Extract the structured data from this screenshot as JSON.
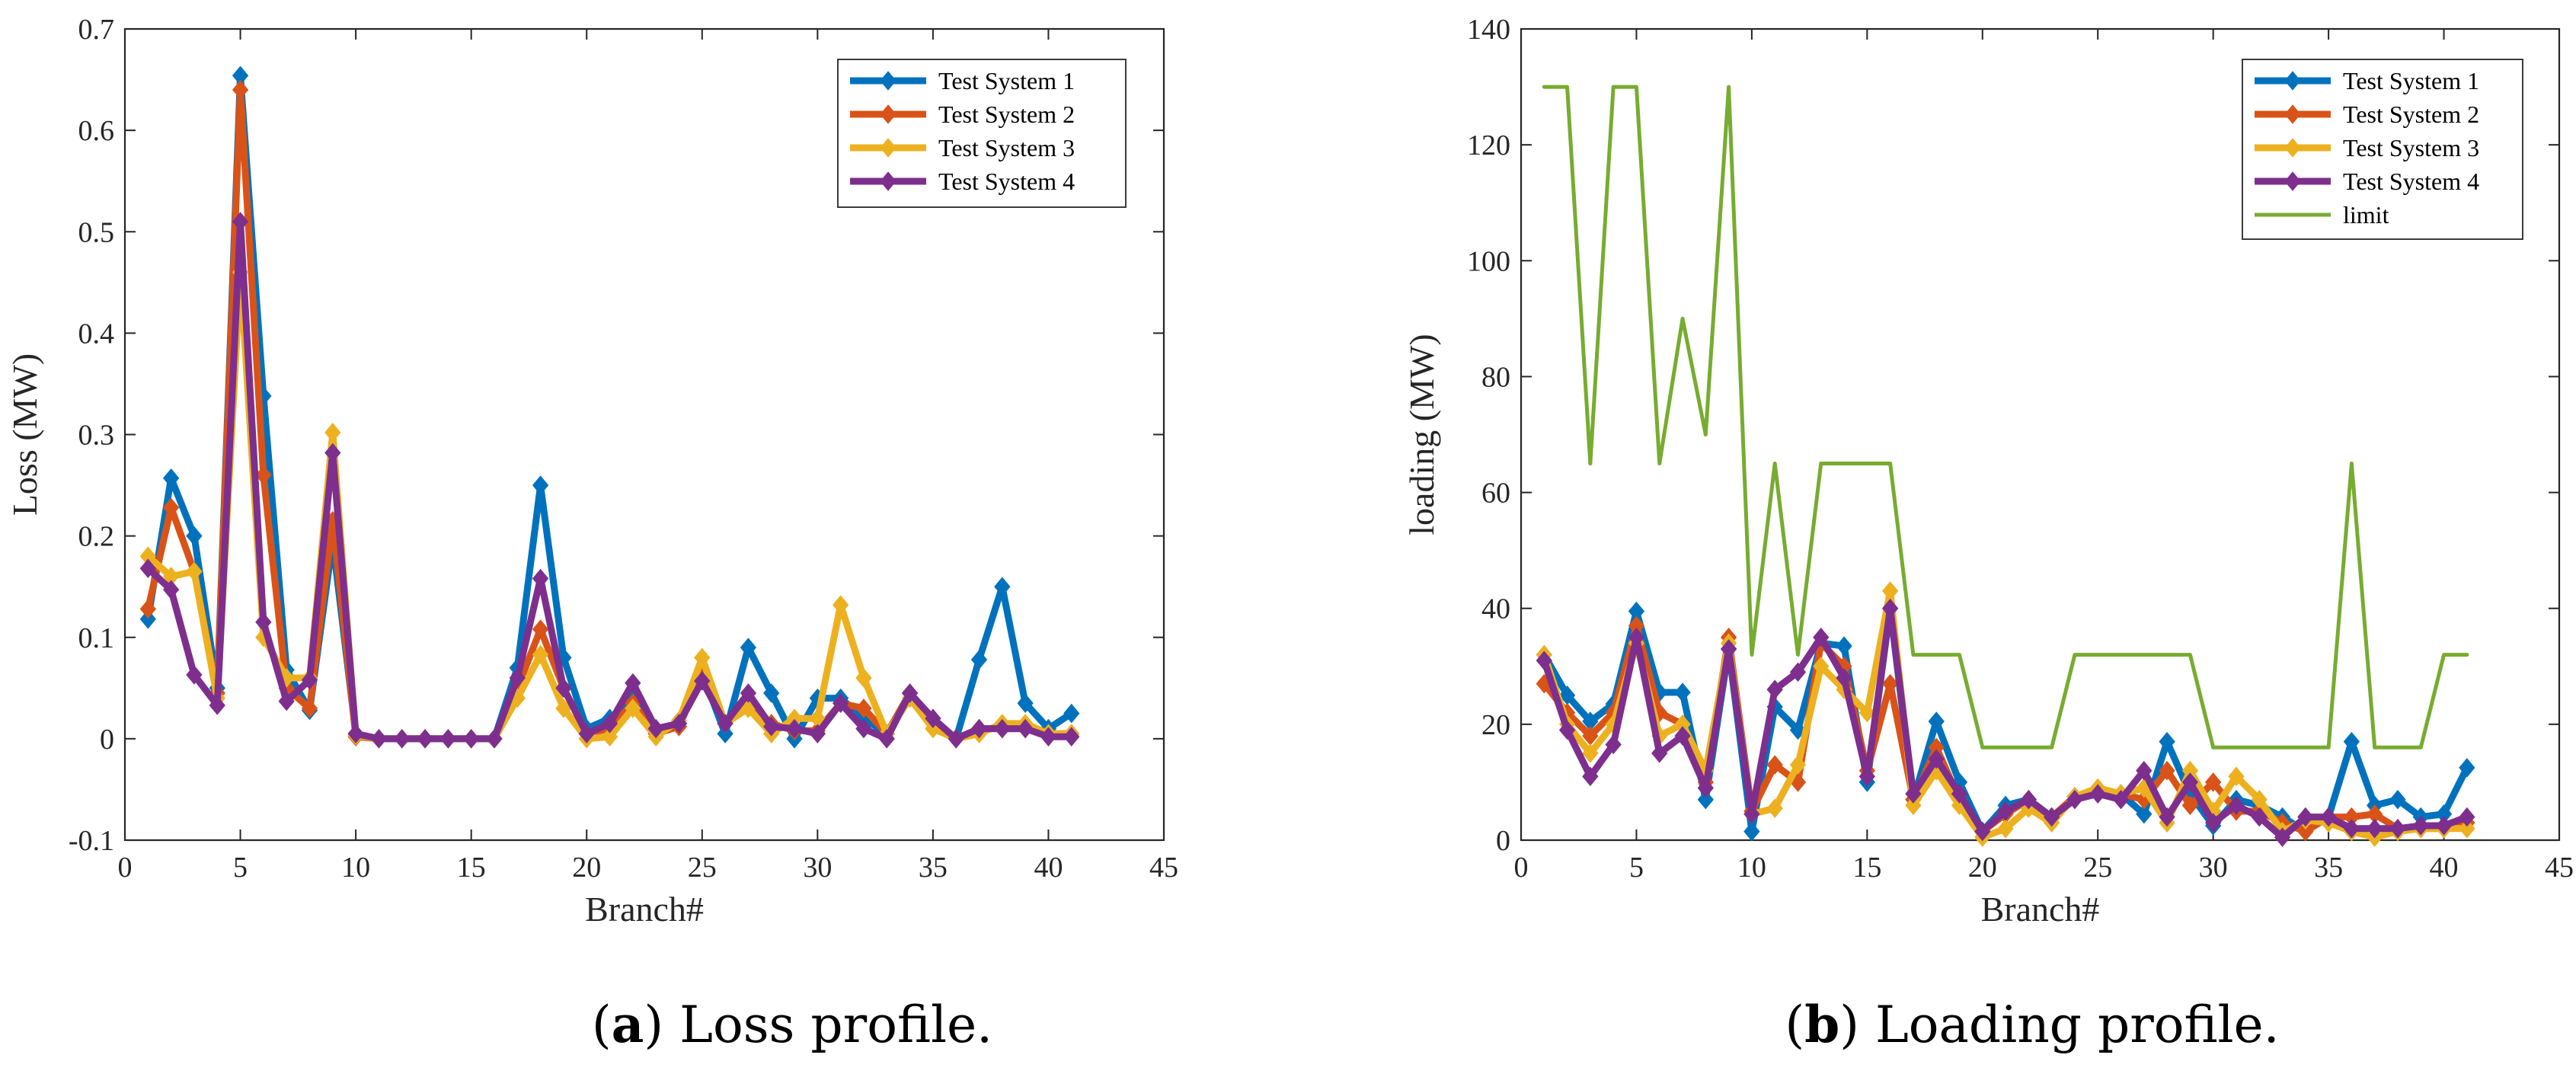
{
  "colors": {
    "axis": "#262626",
    "test_system_1": "#0072BD",
    "test_system_2": "#D95319",
    "test_system_3": "#EDB120",
    "test_system_4": "#7E2F8E",
    "limit": "#77AC30"
  },
  "chart_data": [
    {
      "type": "line",
      "panel": "a",
      "caption_letter": "a",
      "caption_paren_open": "(",
      "caption_paren_close": ")",
      "caption_text": "Loss profile.",
      "xlabel": "Branch#",
      "ylabel": "Loss (MW)",
      "xlim": [
        0,
        45
      ],
      "ylim": [
        -0.1,
        0.7
      ],
      "xticks": [
        "0",
        "5",
        "10",
        "15",
        "20",
        "25",
        "30",
        "35",
        "40",
        "45"
      ],
      "yticks": [
        "-0.1",
        "0",
        "0.1",
        "0.2",
        "0.3",
        "0.4",
        "0.5",
        "0.6",
        "0.7"
      ],
      "legend_position": "top-right",
      "x": [
        1,
        2,
        3,
        4,
        5,
        6,
        7,
        8,
        9,
        10,
        11,
        12,
        13,
        14,
        15,
        16,
        17,
        18,
        19,
        20,
        21,
        22,
        23,
        24,
        25,
        26,
        27,
        28,
        29,
        30,
        31,
        32,
        33,
        34,
        35,
        36,
        37,
        38,
        39,
        40,
        41
      ],
      "series": [
        {
          "name": "Test System 1",
          "color_key": "test_system_1",
          "marker": "diamond",
          "values": [
            0.118,
            0.257,
            0.2,
            0.05,
            0.654,
            0.338,
            0.068,
            0.028,
            0.195,
            0.005,
            0,
            0,
            0,
            0,
            0,
            0,
            0.07,
            0.25,
            0.08,
            0.01,
            0.02,
            0.04,
            0.005,
            0.015,
            0.065,
            0.005,
            0.09,
            0.045,
            0,
            0.04,
            0.04,
            0.02,
            0.005,
            0.045,
            0.02,
            0,
            0.078,
            0.15,
            0.035,
            0.01,
            0.025
          ]
        },
        {
          "name": "Test System 2",
          "color_key": "test_system_2",
          "marker": "diamond",
          "values": [
            0.128,
            0.228,
            0.165,
            0.045,
            0.64,
            0.26,
            0.05,
            0.03,
            0.215,
            0.002,
            0,
            0,
            0,
            0,
            0,
            0,
            0.05,
            0.108,
            0.05,
            0.005,
            0.01,
            0.035,
            0.005,
            0.012,
            0.065,
            0.015,
            0.035,
            0.015,
            0.008,
            0.008,
            0.035,
            0.03,
            0.005,
            0.045,
            0.015,
            0,
            0.01,
            0.01,
            0.01,
            0.005,
            0.005
          ]
        },
        {
          "name": "Test System 3",
          "color_key": "test_system_3",
          "marker": "diamond",
          "values": [
            0.18,
            0.16,
            0.165,
            0.04,
            0.46,
            0.1,
            0.06,
            0.06,
            0.302,
            0.003,
            0,
            0,
            0,
            0,
            0,
            0,
            0.04,
            0.083,
            0.03,
            0,
            0.002,
            0.03,
            0.002,
            0.018,
            0.08,
            0.015,
            0.03,
            0.005,
            0.02,
            0.02,
            0.132,
            0.06,
            0.005,
            0.04,
            0.01,
            0,
            0.005,
            0.015,
            0.015,
            0.005,
            0.005
          ]
        },
        {
          "name": "Test System 4",
          "color_key": "test_system_4",
          "marker": "diamond",
          "values": [
            0.168,
            0.147,
            0.063,
            0.033,
            0.51,
            0.115,
            0.037,
            0.058,
            0.282,
            0.005,
            0,
            0,
            0,
            0,
            0,
            0,
            0.06,
            0.158,
            0.05,
            0.005,
            0.015,
            0.055,
            0.01,
            0.015,
            0.057,
            0.015,
            0.045,
            0.012,
            0.01,
            0.005,
            0.035,
            0.01,
            0,
            0.045,
            0.02,
            0,
            0.01,
            0.01,
            0.01,
            0.002,
            0.002
          ]
        }
      ]
    },
    {
      "type": "line",
      "panel": "b",
      "caption_letter": "b",
      "caption_paren_open": "(",
      "caption_paren_close": ")",
      "caption_text": "Loading profile.",
      "xlabel": "Branch#",
      "ylabel": "loading (MW)",
      "xlim": [
        0,
        45
      ],
      "ylim": [
        0,
        140
      ],
      "xticks": [
        "0",
        "5",
        "10",
        "15",
        "20",
        "25",
        "30",
        "35",
        "40",
        "45"
      ],
      "yticks": [
        "0",
        "20",
        "40",
        "60",
        "80",
        "100",
        "120",
        "140"
      ],
      "legend_position": "top-right",
      "x": [
        1,
        2,
        3,
        4,
        5,
        6,
        7,
        8,
        9,
        10,
        11,
        12,
        13,
        14,
        15,
        16,
        17,
        18,
        19,
        20,
        21,
        22,
        23,
        24,
        25,
        26,
        27,
        28,
        29,
        30,
        31,
        32,
        33,
        34,
        35,
        36,
        37,
        38,
        39,
        40,
        41
      ],
      "series": [
        {
          "name": "Test System 1",
          "color_key": "test_system_1",
          "marker": "diamond",
          "values": [
            32,
            25,
            20.5,
            23.5,
            39.5,
            25.5,
            25.5,
            7,
            33,
            1.5,
            23,
            19,
            34,
            33.5,
            10,
            40,
            7,
            20.5,
            10,
            1.5,
            6,
            7,
            4,
            7.5,
            8,
            8,
            4.5,
            17,
            8,
            2.5,
            7,
            6,
            4,
            1.5,
            4,
            17,
            6,
            7,
            4,
            4.5,
            12.5
          ]
        },
        {
          "name": "Test System 2",
          "color_key": "test_system_2",
          "marker": "diamond",
          "values": [
            27,
            22,
            18,
            22,
            37,
            22,
            20,
            10,
            35,
            5,
            13,
            10,
            34,
            30,
            12,
            27,
            7,
            16,
            7,
            1.5,
            4.5,
            7,
            4,
            7.5,
            8,
            8,
            7,
            12,
            6,
            10,
            5,
            5,
            3,
            1.5,
            4,
            4,
            4.5,
            2,
            2,
            2,
            3
          ]
        },
        {
          "name": "Test System 3",
          "color_key": "test_system_3",
          "marker": "diamond",
          "values": [
            32,
            20,
            15,
            20,
            34,
            18,
            20,
            12,
            34,
            4.5,
            5.5,
            13,
            30,
            26,
            22,
            43,
            6,
            12,
            6,
            0.5,
            2,
            5.5,
            3,
            7.5,
            9,
            8,
            9,
            3,
            12,
            5,
            11,
            7,
            1.5,
            3.5,
            3,
            1.5,
            0.5,
            1.5,
            2,
            2,
            2
          ]
        },
        {
          "name": "Test System 4",
          "color_key": "test_system_4",
          "marker": "diamond",
          "values": [
            31,
            19,
            11,
            16.5,
            35,
            15,
            18,
            9,
            33,
            4.5,
            26,
            29,
            35,
            28,
            11,
            40,
            8,
            14,
            8,
            1.5,
            5,
            7,
            4,
            7,
            8,
            7,
            12,
            4,
            10,
            3,
            6,
            4,
            0.5,
            4,
            4,
            2,
            2,
            2,
            2.5,
            2.5,
            4
          ]
        },
        {
          "name": "limit",
          "color_key": "limit",
          "marker": "none",
          "values": [
            130,
            130,
            65,
            130,
            130,
            65,
            90,
            70,
            130,
            32,
            65,
            32,
            65,
            65,
            65,
            65,
            32,
            32,
            32,
            16,
            16,
            16,
            16,
            32,
            32,
            32,
            32,
            32,
            32,
            16,
            16,
            16,
            16,
            16,
            16,
            65,
            16,
            16,
            16,
            32,
            32
          ]
        }
      ]
    }
  ]
}
